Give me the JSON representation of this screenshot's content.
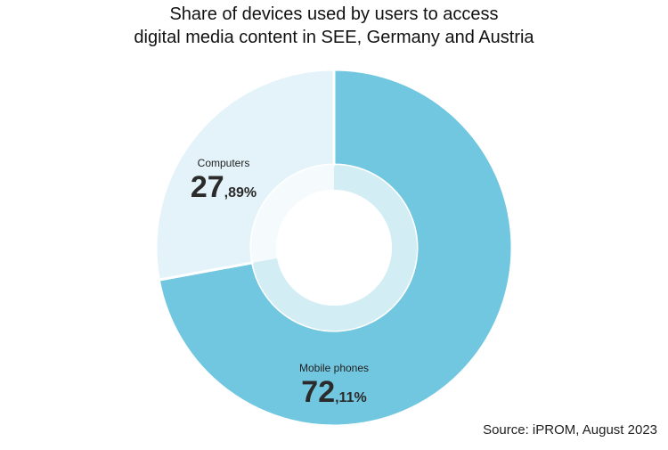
{
  "chart_data": {
    "type": "pie",
    "title_lines": [
      "Share of devices used by users to access",
      "digital media content in SEE, Germany and Austria"
    ],
    "slices": [
      {
        "label": "Mobile phones",
        "value": 72.11,
        "value_int": "72",
        "value_dec": ",11%",
        "color": "#72c7e0",
        "inner_color": "#d3edf5"
      },
      {
        "label": "Computers",
        "value": 27.89,
        "value_int": "27",
        "value_dec": ",89%",
        "color": "#e3f3f9",
        "inner_color": "#f5fbfd"
      }
    ],
    "source": "Source: iPROM, August 2023"
  }
}
